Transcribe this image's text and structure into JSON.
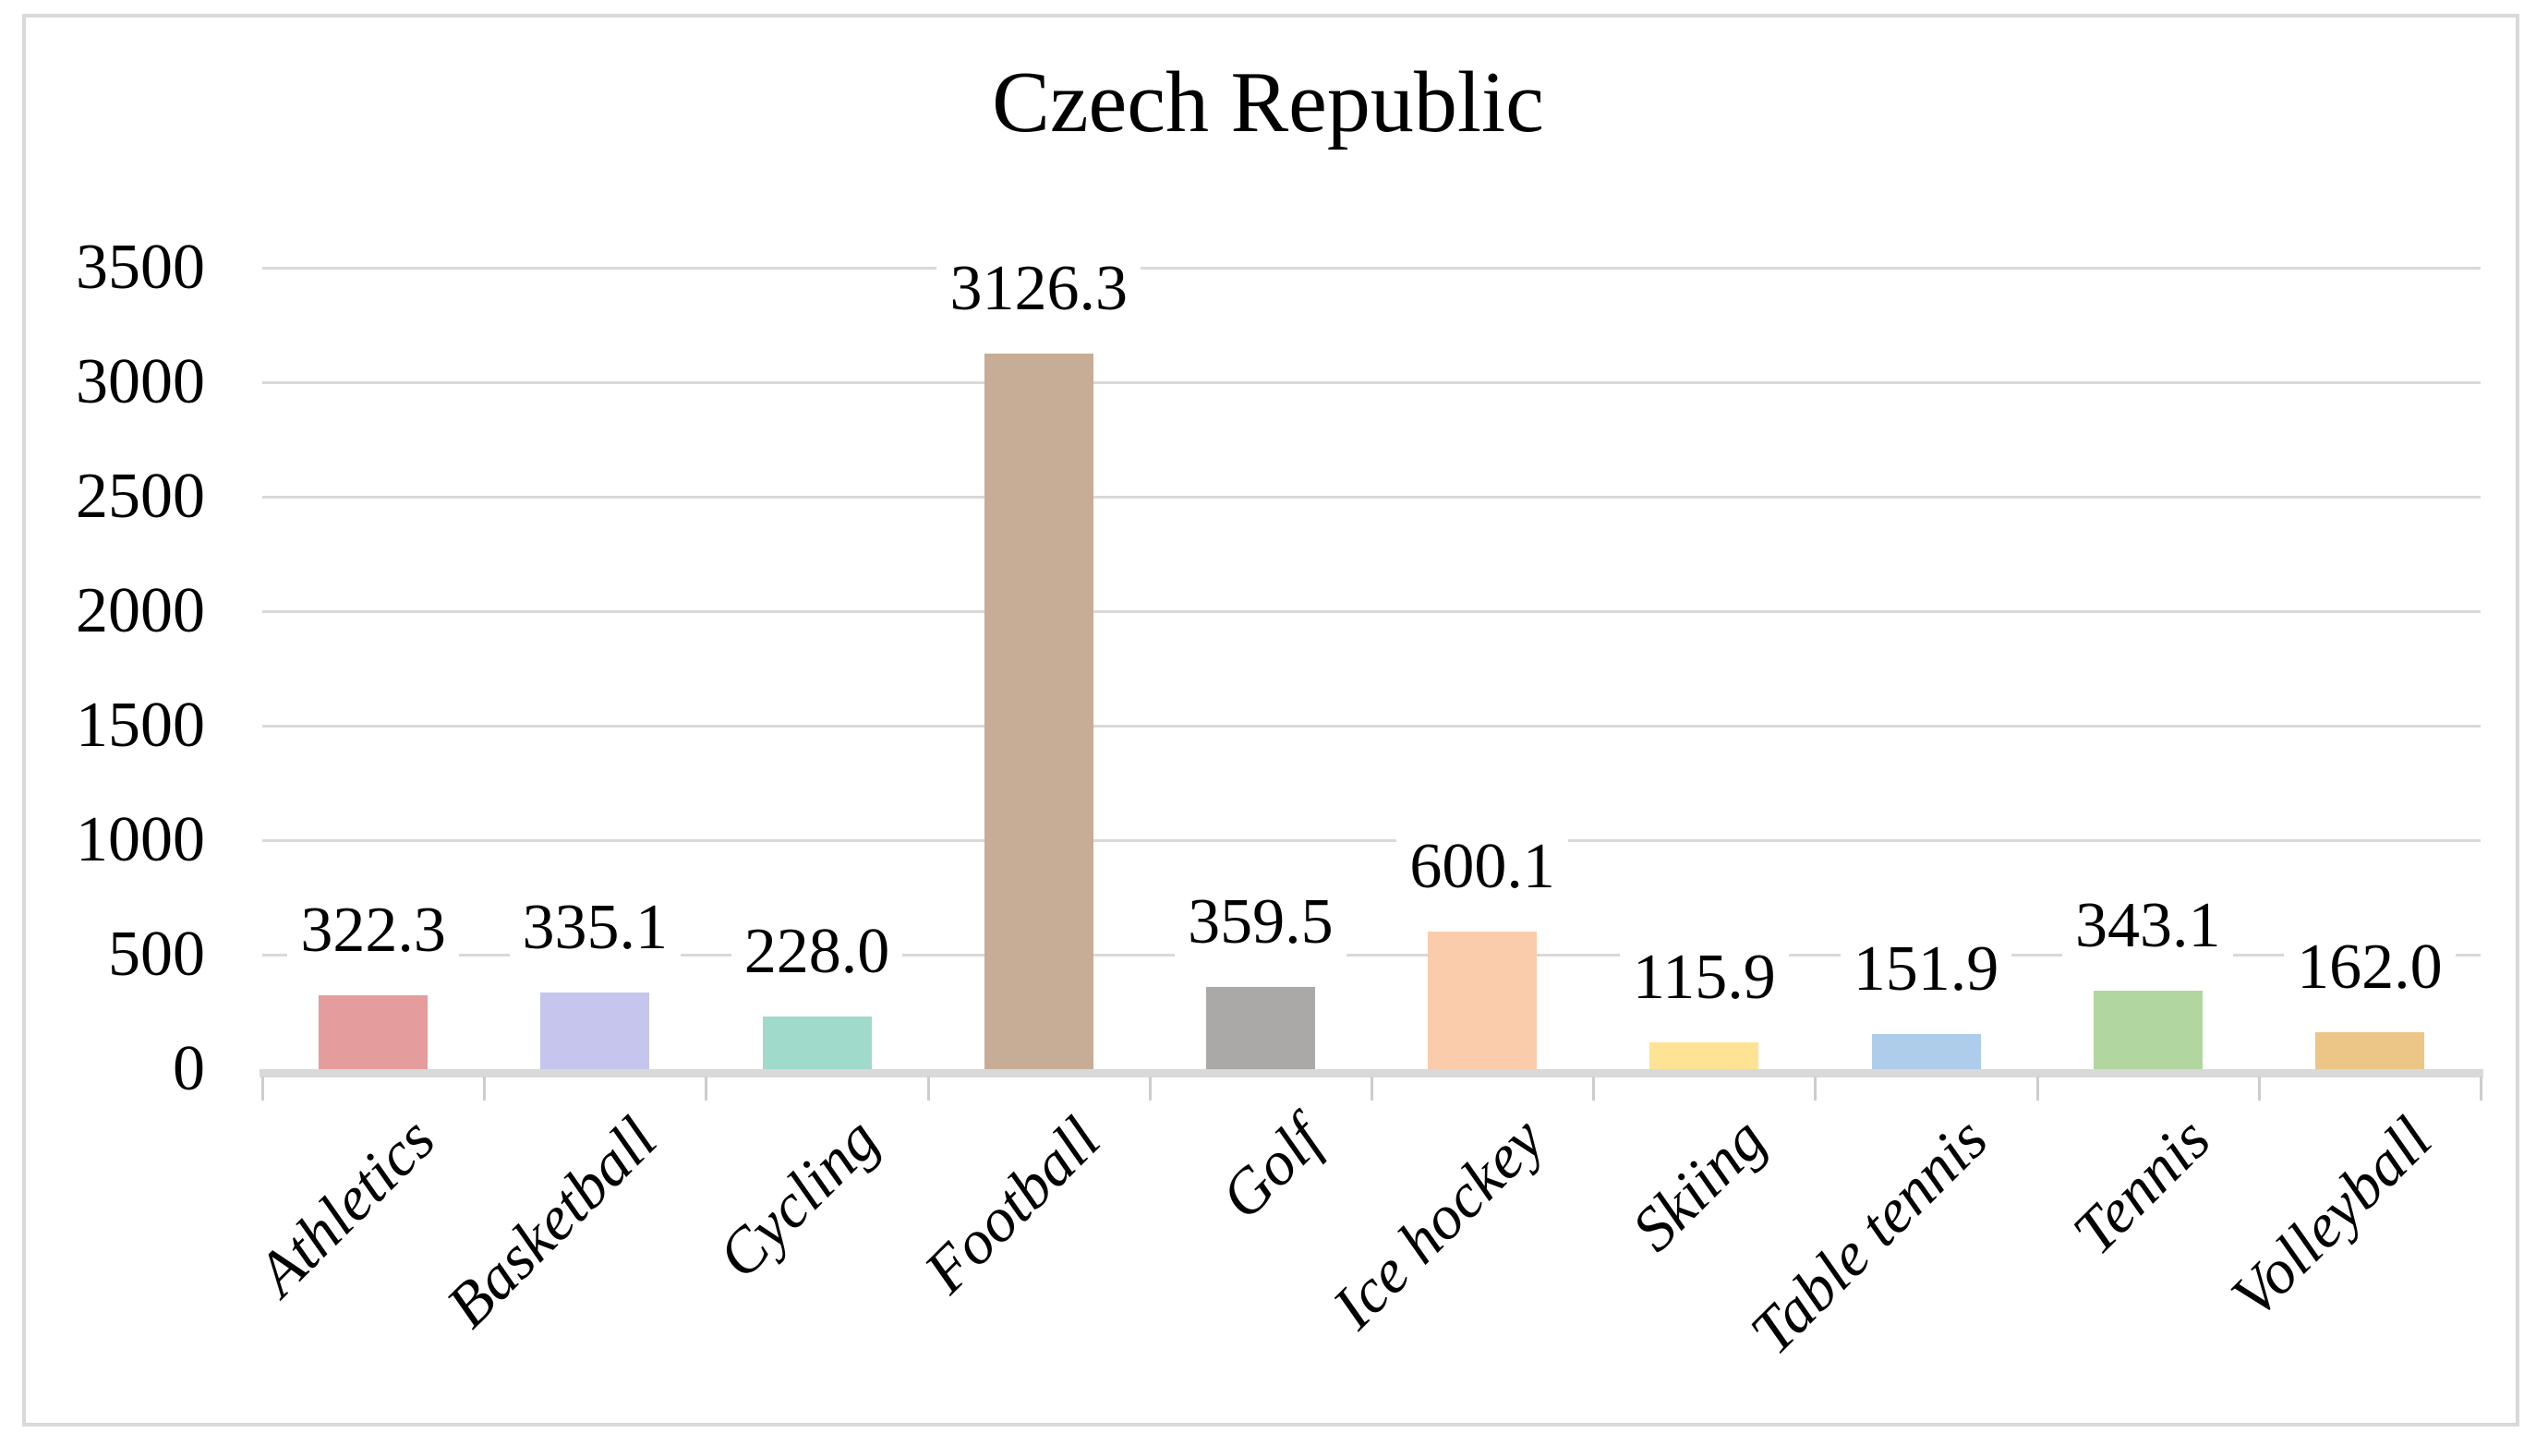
{
  "title": "Czech Republic",
  "chart_data": {
    "type": "bar",
    "title": "Czech Republic",
    "xlabel": "",
    "ylabel": "",
    "categories": [
      "Athletics",
      "Basketball",
      "Cycling",
      "Football",
      "Golf",
      "Ice hockey",
      "Skiing",
      "Table tennis",
      "Tennis",
      "Volleyball"
    ],
    "values": [
      322.3,
      335.1,
      228.0,
      3126.3,
      359.5,
      600.1,
      115.9,
      151.9,
      343.1,
      162.0
    ],
    "data_labels": [
      "322.3",
      "335.1",
      "228.0",
      "3126.3",
      "359.5",
      "600.1",
      "115.9",
      "151.9",
      "343.1",
      "162.0"
    ],
    "bar_colors": [
      "#E59C9C",
      "#C6C5ED",
      "#9FDACA",
      "#C7AC96",
      "#ABA9A8",
      "#FACCAB",
      "#FFE394",
      "#AECDEB",
      "#B2D6A0",
      "#EBC687"
    ],
    "ylim": [
      0,
      3500
    ],
    "ytick_interval": 500,
    "yticks": [
      "0",
      "500",
      "1000",
      "1500",
      "2000",
      "2500",
      "3000",
      "3500"
    ],
    "grid": "horizontal",
    "legend": "none",
    "xtick_rotation_deg": 45,
    "colors": {
      "gridline": "#D9D9D9",
      "axis_line": "#D9D9D9",
      "tick_mark": "#CDCDCD",
      "text": "#000000",
      "frame_border": "#D9D9D9",
      "background": "#FFFFFF"
    }
  }
}
